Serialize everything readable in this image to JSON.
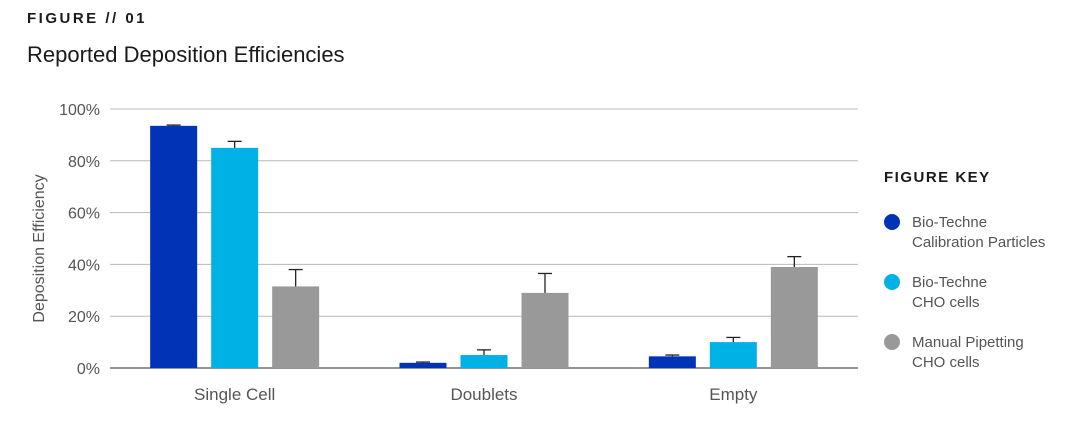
{
  "figure_label": "FIGURE  //  01",
  "figure_title": "Reported Deposition Efficiencies",
  "key": {
    "title": "FIGURE KEY",
    "items": [
      {
        "line1": "Bio-Techne",
        "line2": "Calibration Particles",
        "color": "#0033b5"
      },
      {
        "line1": "Bio-Techne",
        "line2": "CHO cells",
        "color": "#00b1e6"
      },
      {
        "line1": "Manual Pipetting",
        "line2": "CHO cells",
        "color": "#999999"
      }
    ]
  },
  "chart_data": {
    "type": "bar",
    "categories": [
      "Single Cell",
      "Doublets",
      "Empty"
    ],
    "series": [
      {
        "values": [
          93.5,
          2.0,
          4.5
        ],
        "errors": [
          0.3,
          0.3,
          0.5
        ],
        "color": "#0033b5"
      },
      {
        "values": [
          85,
          5,
          10
        ],
        "errors": [
          2.5,
          2.0,
          1.8
        ],
        "color": "#00b1e6"
      },
      {
        "values": [
          31.5,
          29,
          39
        ],
        "errors": [
          6.5,
          7.5,
          4.0
        ],
        "color": "#999999"
      }
    ],
    "ylabel": "Deposition Efficiency",
    "ylim": [
      0,
      100
    ],
    "yticks": [
      "0%",
      "20%",
      "40%",
      "60%",
      "80%",
      "100%"
    ],
    "grid": true
  }
}
